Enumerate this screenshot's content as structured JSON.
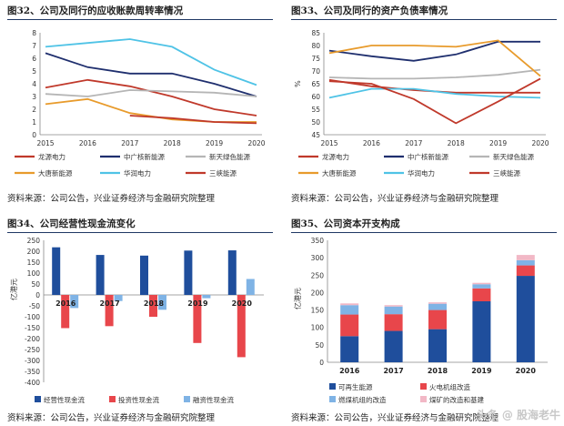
{
  "charts": [
    {
      "id": "c1",
      "title": "图32、公司及同行的应收账款周转率情况",
      "source": "资料来源：公司公告，兴业证券经济与金融研究院整理",
      "chart_data": {
        "type": "line",
        "x": [
          "2015",
          "2016",
          "2017",
          "2018",
          "2019",
          "2020"
        ],
        "ylim": [
          0,
          8
        ],
        "yticks": [
          0,
          1,
          2,
          3,
          4,
          5,
          6,
          7,
          8
        ],
        "legend_position": "bottom",
        "series": [
          {
            "name": "龙源电力",
            "color": "#c0392b",
            "values": [
              3.7,
              4.3,
              3.8,
              3.0,
              2.0,
              1.5
            ]
          },
          {
            "name": "中广核新能源",
            "color": "#1f2f6e",
            "values": [
              6.4,
              5.3,
              4.8,
              4.8,
              4.0,
              3.0
            ]
          },
          {
            "name": "新天绿色能源",
            "color": "#b5b5b5",
            "values": [
              3.2,
              3.0,
              3.5,
              3.4,
              3.3,
              3.0
            ]
          },
          {
            "name": "大唐新能源",
            "color": "#e89b2c",
            "values": [
              2.4,
              2.8,
              1.7,
              1.2,
              1.0,
              1.0
            ]
          },
          {
            "name": "华润电力",
            "color": "#4fc3e6",
            "values": [
              6.9,
              7.2,
              7.5,
              6.9,
              5.1,
              3.9
            ]
          },
          {
            "name": "三峡能源",
            "color": "#c0392b",
            "values": [
              null,
              null,
              1.5,
              1.3,
              1.0,
              0.9
            ]
          }
        ]
      }
    },
    {
      "id": "c2",
      "title": "图33、公司及同行的资产负债率情况",
      "source": "资料来源：公司公告，兴业证券经济与金融研究院整理",
      "chart_data": {
        "type": "line",
        "x": [
          "2015",
          "2016",
          "2017",
          "2018",
          "2019",
          "2020"
        ],
        "ylabel": "%",
        "ylim": [
          45,
          85
        ],
        "yticks": [
          45,
          50,
          55,
          60,
          65,
          70,
          75,
          80,
          85
        ],
        "legend_position": "bottom",
        "series": [
          {
            "name": "龙源电力",
            "color": "#c0392b",
            "values": [
              66.5,
              64.0,
              62.5,
              61.5,
              61.5,
              61.5
            ]
          },
          {
            "name": "中广核新能源",
            "color": "#1f2f6e",
            "values": [
              78.0,
              75.8,
              74.0,
              76.5,
              81.5,
              81.5
            ]
          },
          {
            "name": "新天绿色能源",
            "color": "#b5b5b5",
            "values": [
              67.5,
              67.0,
              67.0,
              67.5,
              68.5,
              70.5
            ]
          },
          {
            "name": "大唐新能源",
            "color": "#e89b2c",
            "values": [
              77.0,
              80.0,
              80.0,
              79.5,
              82.0,
              68.0
            ]
          },
          {
            "name": "华润电力",
            "color": "#4fc3e6",
            "values": [
              59.5,
              63.0,
              63.0,
              61.0,
              60.0,
              59.5
            ]
          },
          {
            "name": "三峡能源",
            "color": "#c0392b",
            "values": [
              66.0,
              65.0,
              59.0,
              49.5,
              58.0,
              67.0
            ]
          }
        ]
      }
    },
    {
      "id": "c3",
      "title": "图34、公司经营性现金流变化",
      "source": "资料来源：公司公告，兴业证券经济与金融研究院整理",
      "chart_data": {
        "type": "bar",
        "categories": [
          "2016",
          "2017",
          "2018",
          "2019",
          "2020"
        ],
        "ylabel": "亿港元",
        "ylim": [
          -400,
          250
        ],
        "yticks": [
          -400,
          -350,
          -300,
          -250,
          -200,
          -150,
          -100,
          -50,
          0,
          50,
          100,
          150,
          200,
          250
        ],
        "legend_position": "bottom",
        "series": [
          {
            "name": "经营性现金流",
            "color": "#1f4e9c",
            "values": [
              218,
              183,
              180,
              203,
              204
            ]
          },
          {
            "name": "投资性现金流",
            "color": "#e8464b",
            "values": [
              -152,
              -143,
              -100,
              -220,
              -285
            ]
          },
          {
            "name": "融资性现金流",
            "color": "#7fb3e5",
            "values": [
              -60,
              -28,
              -68,
              -15,
              73
            ]
          }
        ]
      }
    },
    {
      "id": "c4",
      "title": "图35、公司资本开支构成",
      "source": "资料来源：公司公告，兴业证券经济与金融研究院整理",
      "chart_data": {
        "type": "stacked-bar",
        "categories": [
          "2016",
          "2017",
          "2018",
          "2019",
          "2020"
        ],
        "ylabel": "亿港元",
        "ylim": [
          0,
          350
        ],
        "yticks": [
          0,
          50,
          100,
          150,
          200,
          250,
          300,
          350
        ],
        "legend_position": "bottom",
        "series": [
          {
            "name": "可再生能源",
            "color": "#1f4e9c",
            "values": [
              75,
              90,
              95,
              175,
              248
            ]
          },
          {
            "name": "火电机组改造",
            "color": "#e8464b",
            "values": [
              62,
              48,
              55,
              37,
              30
            ]
          },
          {
            "name": "燃煤机组的改造",
            "color": "#7fb3e5",
            "values": [
              27,
              22,
              18,
              12,
              15
            ]
          },
          {
            "name": "煤矿的改造和基建",
            "color": "#f2b8c6",
            "values": [
              5,
              4,
              4,
              4,
              15
            ]
          }
        ]
      }
    }
  ],
  "watermark": "头条 @ 股海老牛"
}
